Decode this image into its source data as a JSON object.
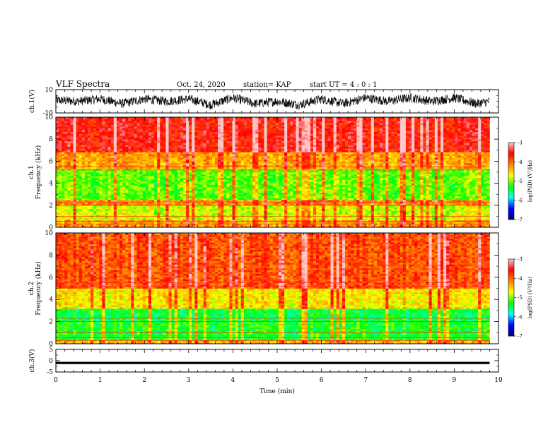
{
  "header": {
    "title": "VLF Spectra",
    "date": "Oct. 24, 2020",
    "station": "station= KAP",
    "start": "start  UT =   4 : 0  : 1"
  },
  "chart_data": [
    {
      "type": "line",
      "panel": "ch1-waveform",
      "ylabel": "ch.1(V)",
      "xlim": [
        0,
        10
      ],
      "ylim": [
        -10,
        10
      ],
      "yticks": [
        "10",
        "-10"
      ],
      "series": [
        {
          "x": [
            0,
            0.5,
            1,
            1.5,
            2,
            2.5,
            3,
            3.5,
            4,
            4.5,
            5,
            5.5,
            6,
            6.5,
            7,
            7.5,
            8,
            8.5,
            9,
            9.5,
            9.8
          ],
          "values": [
            1,
            0,
            2,
            -2,
            2,
            0,
            2,
            -3,
            3,
            -2,
            0,
            -3,
            2,
            -2,
            3,
            0,
            3,
            0,
            3,
            -2,
            0
          ]
        }
      ],
      "color": "#000000"
    },
    {
      "type": "heatmap",
      "panel": "ch1-spectrogram",
      "ylabel": "ch.1\nFrequency  (kHz)",
      "xlim": [
        0,
        10
      ],
      "ylim": [
        0,
        10
      ],
      "yticks": [
        "0",
        "2",
        "4",
        "6",
        "8",
        "10"
      ],
      "data_end_min": 9.8,
      "bands_khz": [
        {
          "from": 0,
          "to": 0.6,
          "log_psd": -4.3
        },
        {
          "from": 0.6,
          "to": 2.0,
          "log_psd": -4.8
        },
        {
          "from": 2.0,
          "to": 2.5,
          "log_psd": -4.2
        },
        {
          "from": 2.5,
          "to": 5.3,
          "log_psd": -5.1
        },
        {
          "from": 5.3,
          "to": 6.8,
          "log_psd": -4.3
        },
        {
          "from": 6.8,
          "to": 10.0,
          "log_psd": -3.6
        }
      ],
      "colorbar": {
        "min": -7,
        "max": -3,
        "ticks": [
          "-3",
          "-4",
          "-5",
          "-6",
          "-7"
        ],
        "label": "log(PSD) (V²/Hz)"
      }
    },
    {
      "type": "heatmap",
      "panel": "ch2-spectrogram",
      "ylabel": "ch.2\nFrequency  (kHz)",
      "xlim": [
        0,
        10
      ],
      "ylim": [
        0,
        10
      ],
      "yticks": [
        "0",
        "2",
        "4",
        "6",
        "8",
        "10"
      ],
      "data_end_min": 9.8,
      "bands_khz": [
        {
          "from": 0,
          "to": 0.4,
          "log_psd": -4.4
        },
        {
          "from": 0.4,
          "to": 2.0,
          "log_psd": -5.3
        },
        {
          "from": 2.0,
          "to": 3.2,
          "log_psd": -5.4
        },
        {
          "from": 3.2,
          "to": 5.0,
          "log_psd": -4.6
        },
        {
          "from": 5.0,
          "to": 10.0,
          "log_psd": -3.9
        }
      ],
      "colorbar": {
        "min": -7,
        "max": -3,
        "ticks": [
          "-3",
          "-4",
          "-5",
          "-6",
          "-7"
        ],
        "label": "log(PSD) (V²/Hz)"
      }
    },
    {
      "type": "line",
      "panel": "ch3-waveform",
      "ylabel": "ch.3(V)",
      "xlim": [
        0,
        10
      ],
      "ylim": [
        -5,
        5
      ],
      "yticks": [
        "5",
        "0",
        "-5"
      ],
      "series": [
        {
          "x": [
            0,
            9.8
          ],
          "values": [
            -1,
            -1
          ],
          "band": [
            -1.5,
            -0.5
          ]
        }
      ],
      "color": "#000000"
    }
  ],
  "xaxis": {
    "label": "Time  (min)",
    "ticks": [
      "0",
      "1",
      "2",
      "3",
      "4",
      "5",
      "6",
      "7",
      "8",
      "9",
      "10"
    ]
  },
  "colormap": [
    "#000080",
    "#0000ff",
    "#00ffff",
    "#00ff00",
    "#ffff00",
    "#ff8000",
    "#ff0000",
    "#ffc8c8"
  ]
}
